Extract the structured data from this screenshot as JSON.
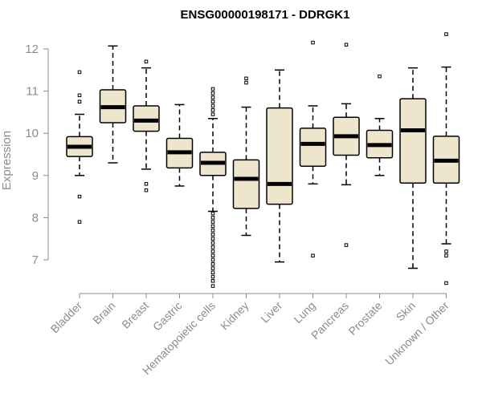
{
  "chart_data": {
    "type": "boxplot",
    "title": "ENSG00000198171 - DDRGK1",
    "xlabel": "",
    "ylabel": "Expression",
    "ylim": [
      6.2,
      12.3
    ],
    "yticks": [
      7,
      8,
      9,
      10,
      11,
      12
    ],
    "box_fill": "#ede6cd",
    "grid": false,
    "categories": [
      "Bladder",
      "Brain",
      "Breast",
      "Gastric",
      "Hematopoietic cells",
      "Kidney",
      "Liver",
      "Lung",
      "Pancreas",
      "Prostate",
      "Skin",
      "Unknown / Other"
    ],
    "boxes": [
      {
        "whislo": 9.0,
        "q1": 9.45,
        "med": 9.68,
        "q3": 9.92,
        "whishi": 10.45,
        "fliers": [
          10.75,
          10.9,
          11.45,
          8.5,
          7.9
        ]
      },
      {
        "whislo": 9.3,
        "q1": 10.25,
        "med": 10.62,
        "q3": 11.03,
        "whishi": 12.07,
        "fliers": []
      },
      {
        "whislo": 9.15,
        "q1": 10.05,
        "med": 10.3,
        "q3": 10.65,
        "whishi": 11.55,
        "fliers": [
          11.7,
          8.8,
          8.65
        ]
      },
      {
        "whislo": 8.75,
        "q1": 9.18,
        "med": 9.55,
        "q3": 9.88,
        "whishi": 10.68,
        "fliers": []
      },
      {
        "whislo": 8.15,
        "q1": 9.0,
        "med": 9.3,
        "q3": 9.55,
        "whishi": 10.35,
        "fliers": [
          10.45,
          10.55,
          10.65,
          10.75,
          10.85,
          10.95,
          11.05,
          8.1,
          8.0,
          7.9,
          7.8,
          7.7,
          7.6,
          7.5,
          7.4,
          7.3,
          7.2,
          7.1,
          7.0,
          6.9,
          6.8,
          6.7,
          6.6,
          6.5,
          6.38
        ]
      },
      {
        "whislo": 7.58,
        "q1": 8.22,
        "med": 8.92,
        "q3": 9.37,
        "whishi": 10.62,
        "fliers": [
          11.2,
          11.3
        ]
      },
      {
        "whislo": 6.95,
        "q1": 8.32,
        "med": 8.8,
        "q3": 10.6,
        "whishi": 11.5,
        "fliers": []
      },
      {
        "whislo": 8.8,
        "q1": 9.22,
        "med": 9.75,
        "q3": 10.12,
        "whishi": 10.65,
        "fliers": [
          12.15,
          7.1
        ]
      },
      {
        "whislo": 8.78,
        "q1": 9.48,
        "med": 9.93,
        "q3": 10.38,
        "whishi": 10.7,
        "fliers": [
          12.1,
          7.35
        ]
      },
      {
        "whislo": 9.0,
        "q1": 9.42,
        "med": 9.72,
        "q3": 10.07,
        "whishi": 10.35,
        "fliers": [
          11.35
        ]
      },
      {
        "whislo": 6.8,
        "q1": 8.82,
        "med": 10.07,
        "q3": 10.82,
        "whishi": 11.55,
        "fliers": []
      },
      {
        "whislo": 7.38,
        "q1": 8.82,
        "med": 9.35,
        "q3": 9.93,
        "whishi": 11.57,
        "fliers": [
          12.35,
          7.2,
          7.1,
          6.45
        ]
      }
    ]
  }
}
